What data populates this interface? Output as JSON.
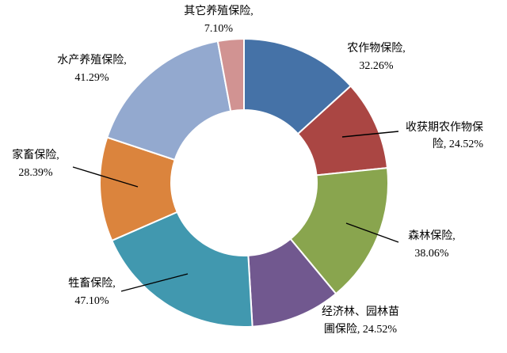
{
  "chart_data": {
    "type": "pie",
    "variant": "donut",
    "legend": "none",
    "slices": [
      {
        "label": "农作物保险,",
        "pct": "32.26%",
        "value": 32.26,
        "color": "#4572a7"
      },
      {
        "label": "收获期农作物保",
        "label2": "险,",
        "pct": "24.52%",
        "value": 24.52,
        "color": "#aa4643"
      },
      {
        "label": "森林保险,",
        "pct": "38.06%",
        "value": 38.06,
        "color": "#89a54e"
      },
      {
        "label": "经济林、园林苗",
        "label2": "圃保险,",
        "pct": "24.52%",
        "value": 24.52,
        "color": "#71588f"
      },
      {
        "label": "牲畜保险,",
        "pct": "47.10%",
        "value": 47.1,
        "color": "#4198af"
      },
      {
        "label": "家畜保险,",
        "pct": "28.39%",
        "value": 28.39,
        "color": "#db843d"
      },
      {
        "label": "水产养殖保险,",
        "pct": "41.29%",
        "value": 41.29,
        "color": "#93a9cf"
      },
      {
        "label": "其它养殖保险,",
        "pct": "7.10%",
        "value": 7.1,
        "color": "#d19392"
      }
    ]
  }
}
